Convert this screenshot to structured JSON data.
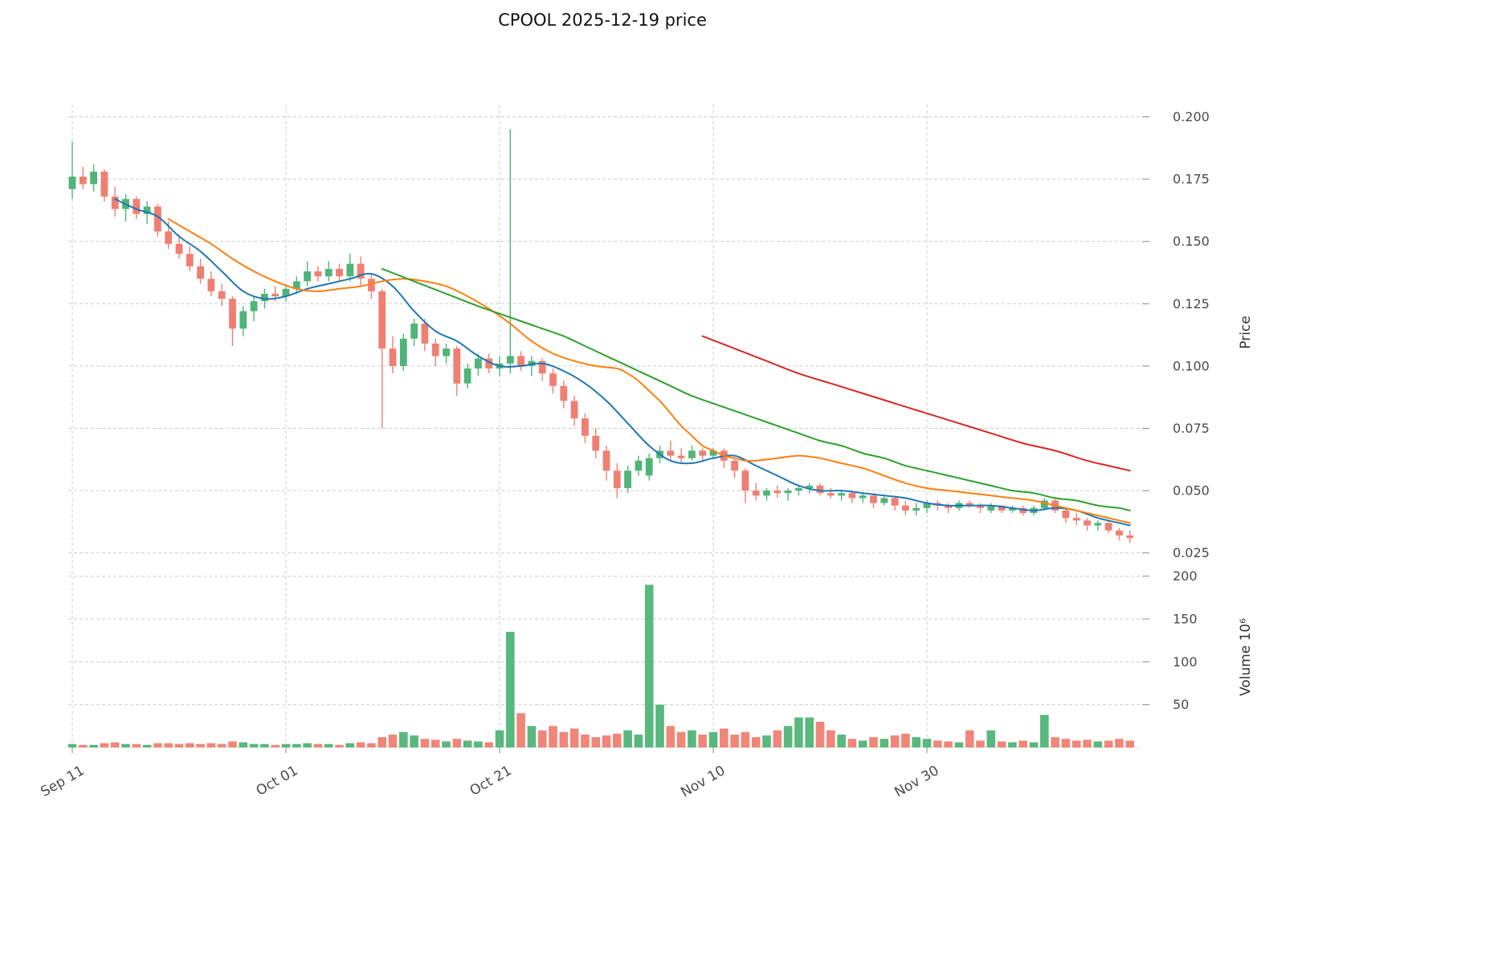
{
  "title": "CPOOL  2025-12-19  price",
  "colors": {
    "up": "#4fb477",
    "down": "#ef7f72",
    "grid": "#cccccc",
    "tick_mark": "#888888",
    "tick_text": "#4a4a4a",
    "spine": "#dddddd",
    "background": "#ffffff"
  },
  "chart_data": {
    "type": "candlestick+volume",
    "symbol": "CPOOL",
    "as_of_date": "2025-12-19",
    "title": "CPOOL  2025-12-19  price",
    "interval": "1 day",
    "grid": "dashed",
    "axes_side": "right",
    "price_axis_label": "Price",
    "volume_axis_label": "Volume  10⁶",
    "price_ylim": [
      0.022,
      0.205
    ],
    "price_ticks": [
      0.2,
      0.175,
      0.15,
      0.125,
      0.1,
      0.075,
      0.05,
      0.025
    ],
    "volume_ylim": [
      0,
      211
    ],
    "volume_ticks": [
      200,
      150,
      100,
      50
    ],
    "volume_units": "millions",
    "x_ticks": [
      {
        "i": 0,
        "label": "Sep 11"
      },
      {
        "i": 20,
        "label": "Oct 01"
      },
      {
        "i": 40,
        "label": "Oct 21"
      },
      {
        "i": 60,
        "label": "Nov 10"
      },
      {
        "i": 80,
        "label": "Nov 30"
      }
    ],
    "candle_columns": [
      "open",
      "high",
      "low",
      "close",
      "volume_millions"
    ],
    "candles": [
      [
        0.171,
        0.19,
        0.167,
        0.176,
        4
      ],
      [
        0.176,
        0.18,
        0.171,
        0.173,
        3
      ],
      [
        0.173,
        0.181,
        0.17,
        0.178,
        3
      ],
      [
        0.178,
        0.179,
        0.166,
        0.168,
        5
      ],
      [
        0.168,
        0.172,
        0.16,
        0.163,
        6
      ],
      [
        0.163,
        0.169,
        0.158,
        0.167,
        4
      ],
      [
        0.167,
        0.168,
        0.159,
        0.161,
        4
      ],
      [
        0.161,
        0.166,
        0.157,
        0.164,
        3
      ],
      [
        0.164,
        0.165,
        0.152,
        0.154,
        5
      ],
      [
        0.154,
        0.158,
        0.147,
        0.149,
        5
      ],
      [
        0.149,
        0.153,
        0.143,
        0.145,
        4
      ],
      [
        0.145,
        0.148,
        0.138,
        0.14,
        5
      ],
      [
        0.14,
        0.143,
        0.133,
        0.135,
        4
      ],
      [
        0.135,
        0.138,
        0.128,
        0.13,
        5
      ],
      [
        0.13,
        0.133,
        0.124,
        0.127,
        4
      ],
      [
        0.127,
        0.128,
        0.108,
        0.115,
        7
      ],
      [
        0.115,
        0.124,
        0.112,
        0.122,
        6
      ],
      [
        0.122,
        0.128,
        0.118,
        0.126,
        4
      ],
      [
        0.126,
        0.131,
        0.123,
        0.129,
        4
      ],
      [
        0.129,
        0.132,
        0.126,
        0.128,
        3
      ],
      [
        0.128,
        0.133,
        0.126,
        0.131,
        4
      ],
      [
        0.131,
        0.136,
        0.129,
        0.134,
        4
      ],
      [
        0.134,
        0.142,
        0.132,
        0.138,
        5
      ],
      [
        0.138,
        0.14,
        0.134,
        0.136,
        4
      ],
      [
        0.136,
        0.142,
        0.134,
        0.139,
        4
      ],
      [
        0.139,
        0.141,
        0.134,
        0.136,
        3
      ],
      [
        0.136,
        0.145,
        0.134,
        0.141,
        5
      ],
      [
        0.141,
        0.144,
        0.132,
        0.135,
        6
      ],
      [
        0.135,
        0.137,
        0.127,
        0.13,
        5
      ],
      [
        0.13,
        0.131,
        0.075,
        0.107,
        12
      ],
      [
        0.107,
        0.112,
        0.097,
        0.1,
        15
      ],
      [
        0.1,
        0.113,
        0.098,
        0.111,
        18
      ],
      [
        0.111,
        0.119,
        0.108,
        0.117,
        14
      ],
      [
        0.117,
        0.119,
        0.106,
        0.109,
        10
      ],
      [
        0.109,
        0.111,
        0.1,
        0.104,
        9
      ],
      [
        0.104,
        0.109,
        0.101,
        0.107,
        7
      ],
      [
        0.107,
        0.108,
        0.088,
        0.093,
        10
      ],
      [
        0.093,
        0.101,
        0.091,
        0.099,
        8
      ],
      [
        0.099,
        0.105,
        0.096,
        0.103,
        7
      ],
      [
        0.103,
        0.105,
        0.097,
        0.099,
        6
      ],
      [
        0.099,
        0.104,
        0.096,
        0.101,
        20
      ],
      [
        0.101,
        0.195,
        0.097,
        0.104,
        135
      ],
      [
        0.104,
        0.106,
        0.098,
        0.1,
        40
      ],
      [
        0.1,
        0.104,
        0.096,
        0.102,
        25
      ],
      [
        0.102,
        0.103,
        0.094,
        0.097,
        20
      ],
      [
        0.097,
        0.099,
        0.089,
        0.092,
        25
      ],
      [
        0.092,
        0.094,
        0.083,
        0.086,
        18
      ],
      [
        0.086,
        0.088,
        0.076,
        0.079,
        22
      ],
      [
        0.079,
        0.081,
        0.069,
        0.072,
        15
      ],
      [
        0.072,
        0.075,
        0.063,
        0.066,
        12
      ],
      [
        0.066,
        0.068,
        0.054,
        0.058,
        14
      ],
      [
        0.058,
        0.061,
        0.047,
        0.051,
        16
      ],
      [
        0.051,
        0.06,
        0.049,
        0.058,
        20
      ],
      [
        0.058,
        0.064,
        0.056,
        0.062,
        15
      ],
      [
        0.056,
        0.065,
        0.054,
        0.063,
        190
      ],
      [
        0.063,
        0.068,
        0.061,
        0.066,
        50
      ],
      [
        0.066,
        0.07,
        0.062,
        0.064,
        25
      ],
      [
        0.064,
        0.067,
        0.061,
        0.063,
        18
      ],
      [
        0.063,
        0.068,
        0.062,
        0.066,
        20
      ],
      [
        0.066,
        0.067,
        0.062,
        0.064,
        15
      ],
      [
        0.064,
        0.067,
        0.063,
        0.066,
        18
      ],
      [
        0.066,
        0.067,
        0.059,
        0.062,
        22
      ],
      [
        0.062,
        0.063,
        0.055,
        0.058,
        15
      ],
      [
        0.058,
        0.059,
        0.045,
        0.05,
        18
      ],
      [
        0.05,
        0.053,
        0.046,
        0.048,
        12
      ],
      [
        0.048,
        0.051,
        0.046,
        0.05,
        14
      ],
      [
        0.05,
        0.052,
        0.047,
        0.049,
        20
      ],
      [
        0.049,
        0.051,
        0.046,
        0.05,
        25
      ],
      [
        0.05,
        0.052,
        0.048,
        0.051,
        35
      ],
      [
        0.051,
        0.053,
        0.049,
        0.052,
        35
      ],
      [
        0.052,
        0.053,
        0.048,
        0.049,
        30
      ],
      [
        0.049,
        0.051,
        0.047,
        0.048,
        20
      ],
      [
        0.048,
        0.05,
        0.046,
        0.049,
        15
      ],
      [
        0.049,
        0.05,
        0.045,
        0.047,
        10
      ],
      [
        0.047,
        0.049,
        0.045,
        0.048,
        8
      ],
      [
        0.048,
        0.049,
        0.043,
        0.045,
        12
      ],
      [
        0.045,
        0.048,
        0.044,
        0.047,
        10
      ],
      [
        0.047,
        0.048,
        0.042,
        0.044,
        14
      ],
      [
        0.044,
        0.046,
        0.04,
        0.042,
        16
      ],
      [
        0.042,
        0.045,
        0.04,
        0.043,
        12
      ],
      [
        0.043,
        0.046,
        0.041,
        0.045,
        10
      ],
      [
        0.045,
        0.046,
        0.042,
        0.044,
        8
      ],
      [
        0.044,
        0.045,
        0.041,
        0.043,
        7
      ],
      [
        0.043,
        0.046,
        0.042,
        0.045,
        6
      ],
      [
        0.045,
        0.046,
        0.043,
        0.044,
        20
      ],
      [
        0.044,
        0.045,
        0.041,
        0.043,
        8
      ],
      [
        0.042,
        0.045,
        0.041,
        0.044,
        20
      ],
      [
        0.044,
        0.044,
        0.041,
        0.042,
        7
      ],
      [
        0.042,
        0.044,
        0.041,
        0.043,
        6
      ],
      [
        0.043,
        0.044,
        0.04,
        0.041,
        8
      ],
      [
        0.041,
        0.044,
        0.04,
        0.043,
        6
      ],
      [
        0.043,
        0.047,
        0.042,
        0.046,
        38
      ],
      [
        0.046,
        0.047,
        0.041,
        0.042,
        12
      ],
      [
        0.042,
        0.043,
        0.037,
        0.039,
        10
      ],
      [
        0.039,
        0.041,
        0.036,
        0.038,
        8
      ],
      [
        0.038,
        0.039,
        0.034,
        0.036,
        9
      ],
      [
        0.036,
        0.038,
        0.034,
        0.037,
        7
      ],
      [
        0.037,
        0.038,
        0.033,
        0.034,
        8
      ],
      [
        0.034,
        0.035,
        0.03,
        0.032,
        10
      ],
      [
        0.032,
        0.034,
        0.029,
        0.031,
        8
      ]
    ],
    "ma_lines": [
      {
        "name": "ma-blue",
        "color": "#1f77b4",
        "points": [
          [
            4,
            0.167
          ],
          [
            6,
            0.163
          ],
          [
            8,
            0.16
          ],
          [
            10,
            0.152
          ],
          [
            12,
            0.146
          ],
          [
            14,
            0.138
          ],
          [
            16,
            0.13
          ],
          [
            18,
            0.127
          ],
          [
            20,
            0.128
          ],
          [
            22,
            0.131
          ],
          [
            24,
            0.133
          ],
          [
            26,
            0.135
          ],
          [
            28,
            0.137
          ],
          [
            30,
            0.132
          ],
          [
            32,
            0.122
          ],
          [
            34,
            0.114
          ],
          [
            36,
            0.11
          ],
          [
            38,
            0.104
          ],
          [
            40,
            0.1
          ],
          [
            42,
            0.1
          ],
          [
            44,
            0.101
          ],
          [
            46,
            0.098
          ],
          [
            48,
            0.093
          ],
          [
            50,
            0.086
          ],
          [
            52,
            0.077
          ],
          [
            54,
            0.068
          ],
          [
            56,
            0.062
          ],
          [
            58,
            0.061
          ],
          [
            60,
            0.063
          ],
          [
            62,
            0.064
          ],
          [
            64,
            0.06
          ],
          [
            66,
            0.056
          ],
          [
            68,
            0.052
          ],
          [
            70,
            0.05
          ],
          [
            72,
            0.05
          ],
          [
            74,
            0.049
          ],
          [
            76,
            0.048
          ],
          [
            78,
            0.047
          ],
          [
            80,
            0.045
          ],
          [
            82,
            0.044
          ],
          [
            84,
            0.044
          ],
          [
            86,
            0.044
          ],
          [
            88,
            0.043
          ],
          [
            90,
            0.042
          ],
          [
            92,
            0.043
          ],
          [
            94,
            0.042
          ],
          [
            96,
            0.039
          ],
          [
            98,
            0.037
          ],
          [
            99,
            0.036
          ]
        ]
      },
      {
        "name": "ma-orange",
        "color": "#ff7f0e",
        "points": [
          [
            9,
            0.159
          ],
          [
            11,
            0.154
          ],
          [
            13,
            0.149
          ],
          [
            15,
            0.143
          ],
          [
            17,
            0.138
          ],
          [
            19,
            0.134
          ],
          [
            21,
            0.131
          ],
          [
            23,
            0.13
          ],
          [
            25,
            0.131
          ],
          [
            27,
            0.132
          ],
          [
            29,
            0.134
          ],
          [
            31,
            0.135
          ],
          [
            33,
            0.134
          ],
          [
            35,
            0.132
          ],
          [
            37,
            0.128
          ],
          [
            39,
            0.123
          ],
          [
            41,
            0.117
          ],
          [
            43,
            0.11
          ],
          [
            45,
            0.105
          ],
          [
            47,
            0.102
          ],
          [
            49,
            0.1
          ],
          [
            51,
            0.099
          ],
          [
            52,
            0.097
          ],
          [
            53,
            0.094
          ],
          [
            54,
            0.09
          ],
          [
            55,
            0.086
          ],
          [
            56,
            0.081
          ],
          [
            57,
            0.076
          ],
          [
            58,
            0.072
          ],
          [
            59,
            0.068
          ],
          [
            60,
            0.066
          ],
          [
            61,
            0.064
          ],
          [
            62,
            0.063
          ],
          [
            63,
            0.062
          ],
          [
            64,
            0.062
          ],
          [
            66,
            0.063
          ],
          [
            68,
            0.064
          ],
          [
            70,
            0.063
          ],
          [
            72,
            0.061
          ],
          [
            74,
            0.059
          ],
          [
            76,
            0.056
          ],
          [
            78,
            0.053
          ],
          [
            80,
            0.051
          ],
          [
            82,
            0.05
          ],
          [
            84,
            0.049
          ],
          [
            86,
            0.048
          ],
          [
            88,
            0.047
          ],
          [
            90,
            0.046
          ],
          [
            92,
            0.044
          ],
          [
            94,
            0.042
          ],
          [
            96,
            0.04
          ],
          [
            98,
            0.038
          ],
          [
            99,
            0.037
          ]
        ]
      },
      {
        "name": "ma-green",
        "color": "#2ca02c",
        "points": [
          [
            29,
            0.139
          ],
          [
            32,
            0.134
          ],
          [
            35,
            0.129
          ],
          [
            38,
            0.124
          ],
          [
            40,
            0.121
          ],
          [
            42,
            0.118
          ],
          [
            44,
            0.115
          ],
          [
            46,
            0.112
          ],
          [
            48,
            0.108
          ],
          [
            50,
            0.104
          ],
          [
            52,
            0.1
          ],
          [
            54,
            0.096
          ],
          [
            56,
            0.092
          ],
          [
            58,
            0.088
          ],
          [
            60,
            0.085
          ],
          [
            62,
            0.082
          ],
          [
            64,
            0.079
          ],
          [
            66,
            0.076
          ],
          [
            68,
            0.073
          ],
          [
            70,
            0.07
          ],
          [
            72,
            0.068
          ],
          [
            74,
            0.065
          ],
          [
            76,
            0.063
          ],
          [
            78,
            0.06
          ],
          [
            80,
            0.058
          ],
          [
            82,
            0.056
          ],
          [
            84,
            0.054
          ],
          [
            86,
            0.052
          ],
          [
            88,
            0.05
          ],
          [
            90,
            0.049
          ],
          [
            92,
            0.047
          ],
          [
            94,
            0.046
          ],
          [
            96,
            0.044
          ],
          [
            98,
            0.043
          ],
          [
            99,
            0.042
          ]
        ]
      },
      {
        "name": "ma-red",
        "color": "#d62728",
        "points": [
          [
            59,
            0.112
          ],
          [
            62,
            0.107
          ],
          [
            65,
            0.102
          ],
          [
            68,
            0.097
          ],
          [
            71,
            0.093
          ],
          [
            74,
            0.089
          ],
          [
            77,
            0.085
          ],
          [
            80,
            0.081
          ],
          [
            83,
            0.077
          ],
          [
            86,
            0.073
          ],
          [
            89,
            0.069
          ],
          [
            92,
            0.066
          ],
          [
            95,
            0.062
          ],
          [
            97,
            0.06
          ],
          [
            99,
            0.058
          ]
        ]
      }
    ]
  }
}
